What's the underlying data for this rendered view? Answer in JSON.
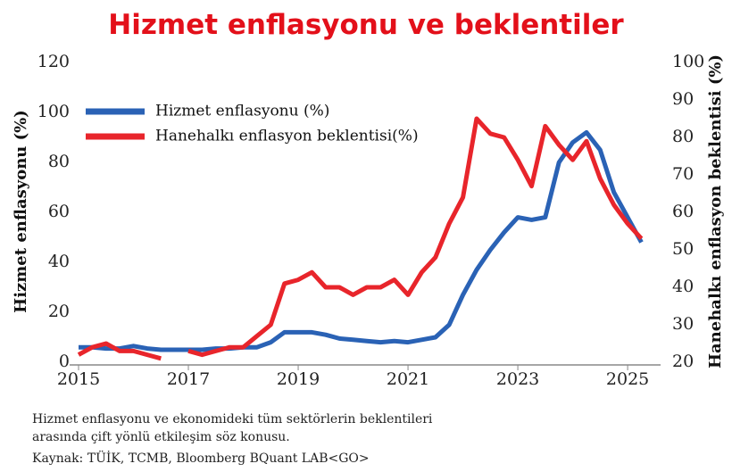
{
  "chart_data": {
    "type": "line",
    "title": "Hizmet enflasyonu ve beklentiler",
    "ylabel": "Hizmet enflasyonu (%)",
    "y2label": "Hanehalkı enflasyon beklentisi (%)",
    "x": [
      2015,
      2015.25,
      2015.5,
      2015.75,
      2016,
      2016.25,
      2016.5,
      2016.75,
      2017,
      2017.25,
      2017.5,
      2017.75,
      2018,
      2018.25,
      2018.5,
      2018.75,
      2019,
      2019.25,
      2019.5,
      2019.75,
      2020,
      2020.25,
      2020.5,
      2020.75,
      2021,
      2021.25,
      2021.5,
      2021.75,
      2022,
      2022.25,
      2022.5,
      2022.75,
      2023,
      2023.25,
      2023.5,
      2023.75,
      2024,
      2024.25,
      2024.5,
      2024.75,
      2025,
      2025.25
    ],
    "xlim": [
      2015,
      2025.6
    ],
    "xticks": [
      2015,
      2017,
      2019,
      2021,
      2023,
      2025
    ],
    "ylim": [
      0,
      120
    ],
    "yticks": [
      0,
      20,
      40,
      60,
      80,
      100,
      120
    ],
    "y2lim": [
      20,
      100
    ],
    "y2ticks": [
      20,
      30,
      40,
      50,
      60,
      70,
      80,
      90,
      100
    ],
    "grid": false,
    "legend": "upper left",
    "series": [
      {
        "name": "Hizmet enflasyonu (%)",
        "color": "#2a62b5",
        "values": [
          6,
          6,
          5.5,
          5.5,
          6.5,
          5.5,
          5,
          5,
          5,
          5,
          5.5,
          5.5,
          6,
          6,
          8,
          12,
          12,
          12,
          11,
          9.5,
          9,
          8.5,
          8,
          8.5,
          8,
          9,
          10,
          15,
          27,
          37,
          45,
          52,
          58,
          57,
          58,
          80,
          88,
          92,
          85,
          68,
          58,
          48
        ]
      },
      {
        "name": "Hanehalkı enflasyon beklentisi(%)",
        "color": "#e8252b",
        "axis": "y2",
        "values": [
          22,
          24,
          25,
          23,
          23,
          22,
          21,
          null,
          23,
          22,
          23,
          24,
          24,
          27,
          30,
          41,
          42,
          44,
          40,
          40,
          38,
          40,
          40,
          42,
          38,
          44,
          48,
          57,
          64,
          85,
          81,
          80,
          74,
          67,
          83,
          78,
          74,
          79,
          69,
          62,
          57,
          53
        ]
      }
    ],
    "notes": [
      "Hizmet enflasyonu ve ekonomideki tüm sektörlerin beklentileri",
      "arasında çift yönlü etkileşim söz konusu."
    ],
    "source": "Kaynak: TÜİK, TCMB, Bloomberg BQuant LAB<GO>"
  }
}
